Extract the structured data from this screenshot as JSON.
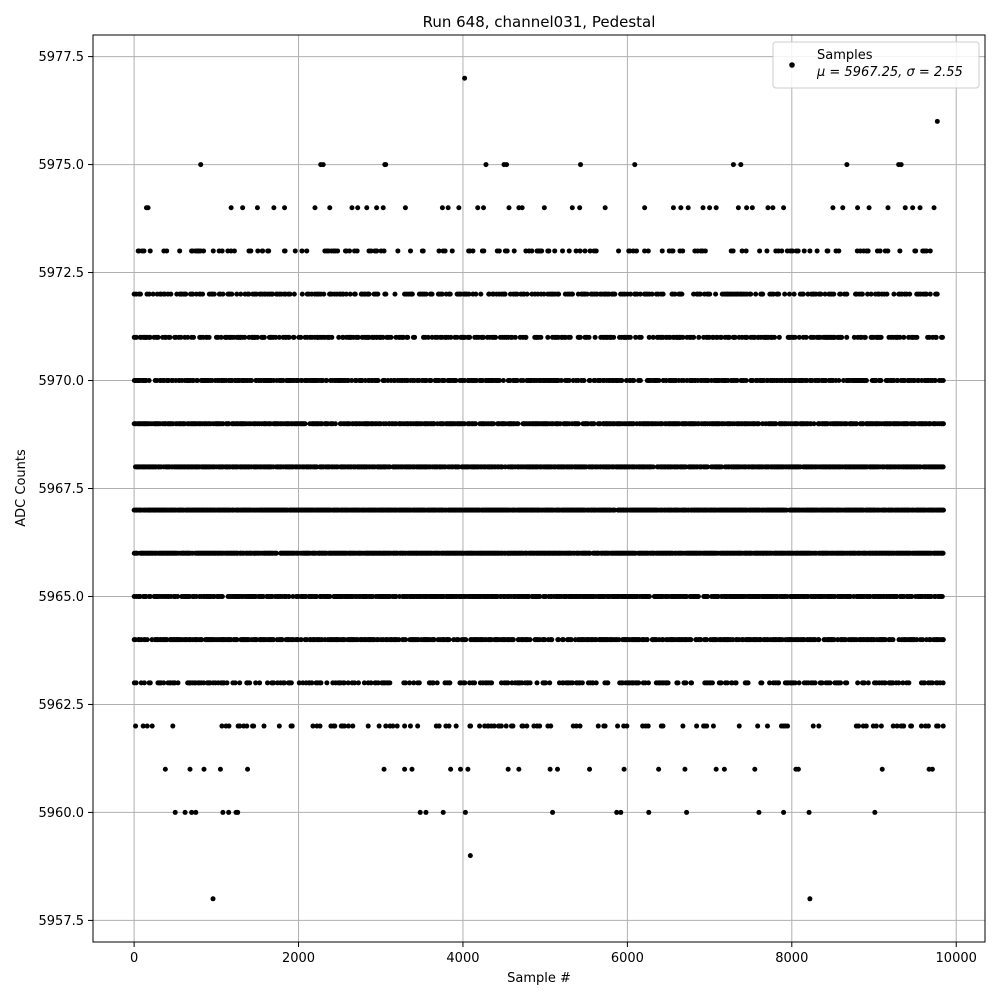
{
  "chart_data": {
    "type": "scatter",
    "title": "Run 648, channel031, Pedestal",
    "xlabel": "Sample #",
    "ylabel": "ADC Counts",
    "xlim": [
      -500,
      10350
    ],
    "ylim": [
      5957.0,
      5978.0
    ],
    "x_ticks": [
      0,
      2000,
      4000,
      6000,
      8000,
      10000
    ],
    "y_ticks": [
      5957.5,
      5960.0,
      5962.5,
      5965.0,
      5967.5,
      5970.0,
      5972.5,
      5975.0,
      5977.5
    ],
    "x_tick_labels": [
      "0",
      "2000",
      "4000",
      "6000",
      "8000",
      "10000"
    ],
    "y_tick_labels": [
      "5957.5",
      "5960.0",
      "5962.5",
      "5965.0",
      "5967.5",
      "5970.0",
      "5972.5",
      "5975.0",
      "5977.5"
    ],
    "grid": true,
    "legend": {
      "position": "top-right",
      "series_label": "Samples",
      "stats_label": "μ = 5967.25, σ = 2.55"
    },
    "series": [
      {
        "name": "Samples",
        "color": "#000000",
        "marker": "dot",
        "n_samples": 9850,
        "levels": [
          {
            "y": 5966,
            "x_ranges": [
              [
                0,
                9850
              ]
            ],
            "density": 0.9
          },
          {
            "y": 5967,
            "x_ranges": [
              [
                0,
                9850
              ]
            ],
            "density": 0.9
          },
          {
            "y": 5968,
            "x_ranges": [
              [
                0,
                9850
              ]
            ],
            "density": 0.8
          },
          {
            "y": 5965,
            "x_ranges": [
              [
                0,
                9850
              ]
            ],
            "density": 0.75
          },
          {
            "y": 5969,
            "x_ranges": [
              [
                0,
                9850
              ]
            ],
            "density": 0.7
          },
          {
            "y": 5970,
            "x_ranges": [
              [
                0,
                9850
              ]
            ],
            "density": 0.6
          },
          {
            "y": 5964,
            "x_ranges": [
              [
                0,
                9850
              ]
            ],
            "density": 0.6
          },
          {
            "y": 5971,
            "x_ranges": [
              [
                0,
                9850
              ]
            ],
            "density": 0.45
          },
          {
            "y": 5963,
            "x_ranges": [
              [
                0,
                9850
              ]
            ],
            "density": 0.35
          },
          {
            "y": 5972,
            "x_ranges": [
              [
                0,
                9850
              ]
            ],
            "density": 0.35
          },
          {
            "y": 5973,
            "x_ranges": [
              [
                0,
                9850
              ]
            ],
            "density": 0.18
          },
          {
            "y": 5962,
            "x_ranges": [
              [
                0,
                9850
              ]
            ],
            "density": 0.12
          }
        ],
        "points": [
          {
            "x": 60,
            "y": 5973
          },
          {
            "x": 150,
            "y": 5974
          },
          {
            "x": 120,
            "y": 5973
          },
          {
            "x": 170,
            "y": 5974
          },
          {
            "x": 790,
            "y": 5973
          },
          {
            "x": 810,
            "y": 5975
          },
          {
            "x": 1180,
            "y": 5974
          },
          {
            "x": 1220,
            "y": 5973
          },
          {
            "x": 1320,
            "y": 5974
          },
          {
            "x": 1420,
            "y": 5973
          },
          {
            "x": 1500,
            "y": 5974
          },
          {
            "x": 1560,
            "y": 5973
          },
          {
            "x": 1700,
            "y": 5974
          },
          {
            "x": 1830,
            "y": 5974
          },
          {
            "x": 1960,
            "y": 5973
          },
          {
            "x": 2100,
            "y": 5973
          },
          {
            "x": 2200,
            "y": 5974
          },
          {
            "x": 2270,
            "y": 5975
          },
          {
            "x": 2300,
            "y": 5975
          },
          {
            "x": 2380,
            "y": 5974
          },
          {
            "x": 2650,
            "y": 5974
          },
          {
            "x": 2720,
            "y": 5974
          },
          {
            "x": 2830,
            "y": 5974
          },
          {
            "x": 2950,
            "y": 5974
          },
          {
            "x": 3030,
            "y": 5974
          },
          {
            "x": 3050,
            "y": 5975
          },
          {
            "x": 3060,
            "y": 5975
          },
          {
            "x": 3300,
            "y": 5974
          },
          {
            "x": 3750,
            "y": 5974
          },
          {
            "x": 3820,
            "y": 5974
          },
          {
            "x": 3950,
            "y": 5974
          },
          {
            "x": 4020,
            "y": 5977
          },
          {
            "x": 4180,
            "y": 5974
          },
          {
            "x": 4250,
            "y": 5974
          },
          {
            "x": 4280,
            "y": 5975
          },
          {
            "x": 4500,
            "y": 5975
          },
          {
            "x": 4530,
            "y": 5975
          },
          {
            "x": 4560,
            "y": 5974
          },
          {
            "x": 4680,
            "y": 5974
          },
          {
            "x": 4720,
            "y": 5974
          },
          {
            "x": 4990,
            "y": 5974
          },
          {
            "x": 5330,
            "y": 5974
          },
          {
            "x": 5420,
            "y": 5974
          },
          {
            "x": 5430,
            "y": 5975
          },
          {
            "x": 5730,
            "y": 5974
          },
          {
            "x": 6090,
            "y": 5975
          },
          {
            "x": 6210,
            "y": 5974
          },
          {
            "x": 6560,
            "y": 5974
          },
          {
            "x": 6650,
            "y": 5974
          },
          {
            "x": 6740,
            "y": 5974
          },
          {
            "x": 6920,
            "y": 5974
          },
          {
            "x": 7000,
            "y": 5974
          },
          {
            "x": 7080,
            "y": 5974
          },
          {
            "x": 7290,
            "y": 5975
          },
          {
            "x": 7380,
            "y": 5975
          },
          {
            "x": 7350,
            "y": 5974
          },
          {
            "x": 7450,
            "y": 5974
          },
          {
            "x": 7520,
            "y": 5974
          },
          {
            "x": 7710,
            "y": 5974
          },
          {
            "x": 7770,
            "y": 5974
          },
          {
            "x": 7900,
            "y": 5974
          },
          {
            "x": 8500,
            "y": 5974
          },
          {
            "x": 8620,
            "y": 5974
          },
          {
            "x": 8670,
            "y": 5975
          },
          {
            "x": 8800,
            "y": 5974
          },
          {
            "x": 8940,
            "y": 5974
          },
          {
            "x": 9170,
            "y": 5974
          },
          {
            "x": 9300,
            "y": 5975
          },
          {
            "x": 9330,
            "y": 5975
          },
          {
            "x": 9380,
            "y": 5974
          },
          {
            "x": 9470,
            "y": 5974
          },
          {
            "x": 9560,
            "y": 5974
          },
          {
            "x": 9730,
            "y": 5974
          },
          {
            "x": 9770,
            "y": 5976
          },
          {
            "x": 110,
            "y": 5962
          },
          {
            "x": 220,
            "y": 5962
          },
          {
            "x": 380,
            "y": 5961
          },
          {
            "x": 500,
            "y": 5960
          },
          {
            "x": 620,
            "y": 5960
          },
          {
            "x": 680,
            "y": 5961
          },
          {
            "x": 700,
            "y": 5960
          },
          {
            "x": 750,
            "y": 5960
          },
          {
            "x": 850,
            "y": 5961
          },
          {
            "x": 960,
            "y": 5958
          },
          {
            "x": 1050,
            "y": 5961
          },
          {
            "x": 1080,
            "y": 5960
          },
          {
            "x": 1150,
            "y": 5960
          },
          {
            "x": 1240,
            "y": 5960
          },
          {
            "x": 1260,
            "y": 5960
          },
          {
            "x": 1380,
            "y": 5961
          },
          {
            "x": 1580,
            "y": 5962
          },
          {
            "x": 1920,
            "y": 5962
          },
          {
            "x": 2560,
            "y": 5962
          },
          {
            "x": 2660,
            "y": 5962
          },
          {
            "x": 3040,
            "y": 5961
          },
          {
            "x": 3200,
            "y": 5962
          },
          {
            "x": 3290,
            "y": 5961
          },
          {
            "x": 3380,
            "y": 5961
          },
          {
            "x": 3480,
            "y": 5960
          },
          {
            "x": 3550,
            "y": 5960
          },
          {
            "x": 3760,
            "y": 5960
          },
          {
            "x": 3850,
            "y": 5961
          },
          {
            "x": 3970,
            "y": 5961
          },
          {
            "x": 4030,
            "y": 5960
          },
          {
            "x": 4060,
            "y": 5961
          },
          {
            "x": 4090,
            "y": 5959
          },
          {
            "x": 4550,
            "y": 5961
          },
          {
            "x": 4680,
            "y": 5961
          },
          {
            "x": 5060,
            "y": 5961
          },
          {
            "x": 5090,
            "y": 5960
          },
          {
            "x": 5150,
            "y": 5961
          },
          {
            "x": 5540,
            "y": 5961
          },
          {
            "x": 5870,
            "y": 5960
          },
          {
            "x": 5920,
            "y": 5960
          },
          {
            "x": 5960,
            "y": 5961
          },
          {
            "x": 6260,
            "y": 5960
          },
          {
            "x": 6380,
            "y": 5961
          },
          {
            "x": 6700,
            "y": 5961
          },
          {
            "x": 6720,
            "y": 5960
          },
          {
            "x": 7080,
            "y": 5961
          },
          {
            "x": 7180,
            "y": 5961
          },
          {
            "x": 7550,
            "y": 5961
          },
          {
            "x": 7600,
            "y": 5960
          },
          {
            "x": 7900,
            "y": 5960
          },
          {
            "x": 8050,
            "y": 5961
          },
          {
            "x": 8080,
            "y": 5961
          },
          {
            "x": 8210,
            "y": 5960
          },
          {
            "x": 8220,
            "y": 5958
          },
          {
            "x": 9010,
            "y": 5960
          },
          {
            "x": 9100,
            "y": 5961
          },
          {
            "x": 9670,
            "y": 5961
          },
          {
            "x": 9710,
            "y": 5961
          }
        ]
      }
    ]
  }
}
